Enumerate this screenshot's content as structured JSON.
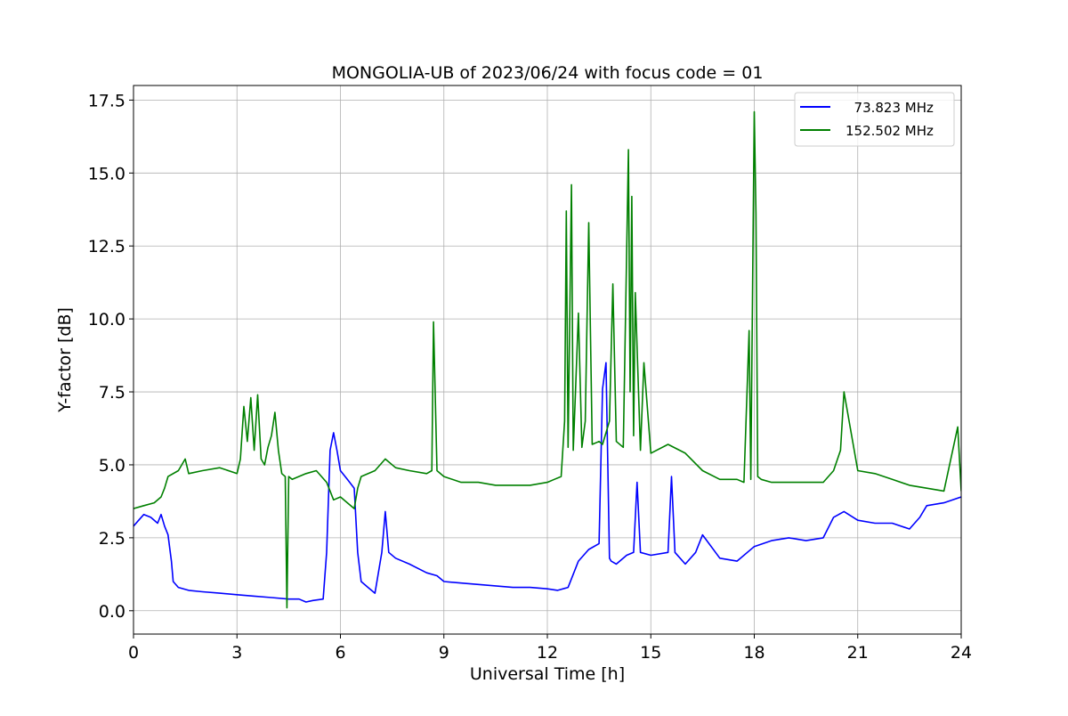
{
  "chart_data": {
    "type": "line",
    "title": "MONGOLIA-UB of 2023/06/24 with focus code = 01",
    "xlabel": "Universal Time [h]",
    "ylabel": "Y-factor [dB]",
    "xlim": [
      0,
      24
    ],
    "ylim": [
      -0.8,
      18.0
    ],
    "xticks": [
      0,
      3,
      6,
      9,
      12,
      15,
      18,
      21,
      24
    ],
    "xtick_labels": [
      "0",
      "3",
      "6",
      "9",
      "12",
      "15",
      "18",
      "21",
      "24"
    ],
    "yticks": [
      0.0,
      2.5,
      5.0,
      7.5,
      10.0,
      12.5,
      15.0,
      17.5
    ],
    "ytick_labels": [
      "0.0",
      "2.5",
      "5.0",
      "7.5",
      "10.0",
      "12.5",
      "15.0",
      "17.5"
    ],
    "grid": true,
    "legend_position": "top-right",
    "series": [
      {
        "name": "  73.823 MHz",
        "color": "#0000ff",
        "x": [
          0.0,
          0.15,
          0.3,
          0.5,
          0.7,
          0.8,
          0.9,
          1.0,
          1.1,
          1.15,
          1.3,
          1.6,
          2.0,
          2.5,
          3.0,
          3.5,
          4.0,
          4.5,
          4.8,
          5.0,
          5.2,
          5.5,
          5.6,
          5.7,
          5.8,
          5.9,
          6.0,
          6.2,
          6.4,
          6.5,
          6.6,
          6.8,
          7.0,
          7.2,
          7.3,
          7.4,
          7.6,
          8.0,
          8.5,
          8.8,
          9.0,
          9.5,
          10.0,
          10.5,
          11.0,
          11.5,
          12.0,
          12.3,
          12.6,
          12.9,
          13.2,
          13.5,
          13.6,
          13.7,
          13.8,
          13.85,
          14.0,
          14.3,
          14.5,
          14.6,
          14.7,
          15.0,
          15.5,
          15.6,
          15.7,
          16.0,
          16.3,
          16.5,
          17.0,
          17.5,
          18.0,
          18.5,
          19.0,
          19.5,
          20.0,
          20.3,
          20.6,
          21.0,
          21.5,
          22.0,
          22.5,
          22.8,
          23.0,
          23.5,
          24.0
        ],
        "y": [
          2.9,
          3.1,
          3.3,
          3.2,
          3.0,
          3.3,
          2.9,
          2.6,
          1.7,
          1.0,
          0.8,
          0.7,
          0.65,
          0.6,
          0.55,
          0.5,
          0.45,
          0.4,
          0.4,
          0.3,
          0.35,
          0.4,
          2.0,
          5.5,
          6.1,
          5.5,
          4.8,
          4.5,
          4.2,
          2.0,
          1.0,
          0.8,
          0.6,
          2.0,
          3.4,
          2.0,
          1.8,
          1.6,
          1.3,
          1.2,
          1.0,
          0.95,
          0.9,
          0.85,
          0.8,
          0.8,
          0.75,
          0.7,
          0.8,
          1.7,
          2.1,
          2.3,
          7.6,
          8.5,
          1.8,
          1.7,
          1.6,
          1.9,
          2.0,
          4.4,
          2.0,
          1.9,
          2.0,
          4.6,
          2.0,
          1.6,
          2.0,
          2.6,
          1.8,
          1.7,
          2.2,
          2.4,
          2.5,
          2.4,
          2.5,
          3.2,
          3.4,
          3.1,
          3.0,
          3.0,
          2.8,
          3.2,
          3.6,
          3.7,
          3.9
        ]
      },
      {
        "name": "152.502 MHz",
        "color": "#008000",
        "x": [
          0.0,
          0.3,
          0.6,
          0.8,
          0.9,
          1.0,
          1.3,
          1.5,
          1.6,
          2.0,
          2.5,
          3.0,
          3.1,
          3.2,
          3.3,
          3.4,
          3.5,
          3.6,
          3.7,
          3.8,
          3.9,
          4.0,
          4.1,
          4.2,
          4.3,
          4.4,
          4.45,
          4.5,
          4.6,
          5.0,
          5.3,
          5.6,
          5.8,
          6.0,
          6.2,
          6.4,
          6.5,
          6.6,
          7.0,
          7.3,
          7.6,
          8.0,
          8.5,
          8.65,
          8.7,
          8.8,
          9.0,
          9.5,
          10.0,
          10.5,
          11.0,
          11.5,
          12.0,
          12.2,
          12.4,
          12.5,
          12.55,
          12.6,
          12.7,
          12.75,
          12.8,
          12.9,
          13.0,
          13.1,
          13.2,
          13.3,
          13.5,
          13.6,
          13.8,
          13.9,
          14.0,
          14.2,
          14.35,
          14.4,
          14.45,
          14.5,
          14.55,
          14.7,
          14.8,
          15.0,
          15.5,
          16.0,
          16.5,
          17.0,
          17.5,
          17.7,
          17.85,
          17.9,
          17.95,
          18.0,
          18.05,
          18.1,
          18.2,
          18.5,
          19.0,
          19.5,
          20.0,
          20.3,
          20.5,
          20.6,
          21.0,
          21.5,
          22.0,
          22.5,
          23.0,
          23.5,
          23.9,
          24.0
        ],
        "y": [
          3.5,
          3.6,
          3.7,
          3.9,
          4.2,
          4.6,
          4.8,
          5.2,
          4.7,
          4.8,
          4.9,
          4.7,
          5.2,
          7.0,
          5.8,
          7.3,
          5.5,
          7.4,
          5.2,
          5.0,
          5.6,
          6.0,
          6.8,
          5.5,
          4.7,
          4.6,
          0.1,
          4.6,
          4.5,
          4.7,
          4.8,
          4.4,
          3.8,
          3.9,
          3.7,
          3.5,
          4.2,
          4.6,
          4.8,
          5.2,
          4.9,
          4.8,
          4.7,
          4.8,
          9.9,
          4.8,
          4.6,
          4.4,
          4.4,
          4.3,
          4.3,
          4.3,
          4.4,
          4.5,
          4.6,
          6.5,
          13.7,
          5.6,
          14.6,
          5.5,
          7.0,
          10.2,
          5.6,
          6.5,
          13.3,
          5.7,
          5.8,
          5.7,
          6.5,
          11.2,
          5.8,
          5.6,
          15.8,
          7.5,
          14.2,
          6.0,
          10.9,
          5.5,
          8.5,
          5.4,
          5.7,
          5.4,
          4.8,
          4.5,
          4.5,
          4.4,
          9.6,
          4.5,
          11.1,
          17.1,
          13.6,
          4.6,
          4.5,
          4.4,
          4.4,
          4.4,
          4.4,
          4.8,
          5.5,
          7.5,
          4.8,
          4.7,
          4.5,
          4.3,
          4.2,
          4.1,
          6.3,
          4.1
        ]
      }
    ]
  }
}
